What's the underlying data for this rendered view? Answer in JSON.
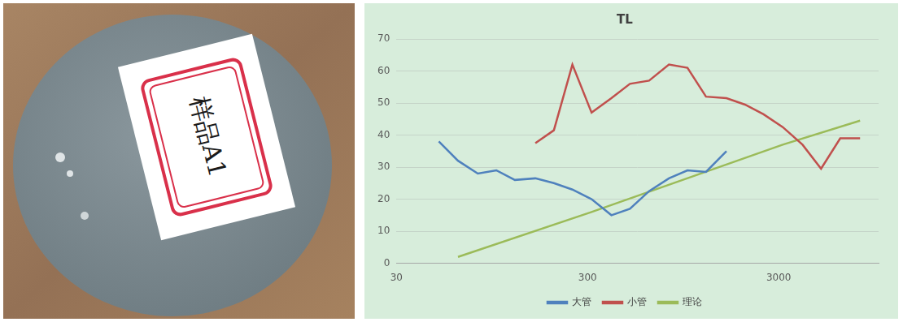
{
  "chart_data": {
    "type": "line",
    "title": "TL",
    "log": "x",
    "xlim": [
      30,
      10000
    ],
    "xticks": [
      30,
      300,
      3000
    ],
    "ylim": [
      0,
      70
    ],
    "yticks": [
      0,
      10,
      20,
      30,
      40,
      50,
      60,
      70
    ],
    "grid": true,
    "legend": "bottom",
    "series": [
      {
        "name": "大管",
        "color": "#4f81bd",
        "x": [
          50,
          63,
          80,
          100,
          125,
          160,
          200,
          250,
          315,
          400,
          500,
          630,
          800,
          1000,
          1250,
          1600
        ],
        "values": [
          38,
          32,
          28,
          29,
          26,
          26.5,
          25,
          23,
          20,
          15,
          17,
          22.5,
          26.5,
          29,
          28.5,
          35
        ]
      },
      {
        "name": "小管",
        "color": "#c0504d",
        "x": [
          160,
          200,
          250,
          315,
          400,
          500,
          630,
          800,
          1000,
          1250,
          1600,
          2000,
          2500,
          3150,
          4000,
          5000,
          6300,
          8000
        ],
        "values": [
          37.5,
          41.5,
          62,
          47,
          51.5,
          56,
          57,
          62,
          61,
          52,
          51.5,
          49.5,
          46.5,
          42.5,
          37,
          29.5,
          39,
          39
        ]
      },
      {
        "name": "理论",
        "color": "#9bbb59",
        "x": [
          63,
          315,
          3150,
          8000
        ],
        "values": [
          2,
          16,
          37,
          44.5
        ]
      }
    ]
  },
  "photo": {
    "label": "样品A1"
  }
}
